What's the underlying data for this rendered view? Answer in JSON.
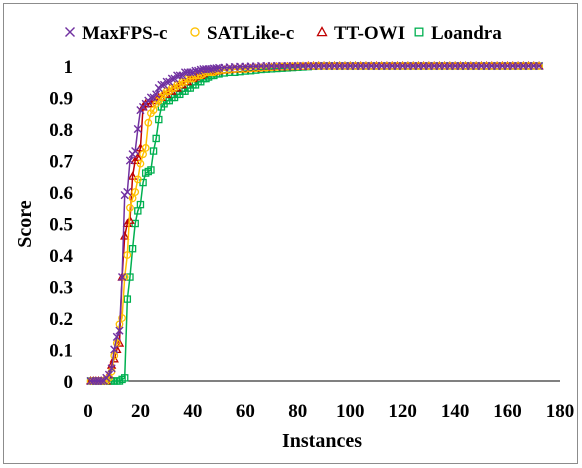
{
  "chart_data": {
    "type": "line",
    "xlabel": "Instances",
    "ylabel": "Score",
    "xlim": [
      0,
      180
    ],
    "ylim": [
      0,
      1
    ],
    "xticks": [
      "0",
      "20",
      "40",
      "60",
      "80",
      "100",
      "120",
      "140",
      "160",
      "180"
    ],
    "yticks": [
      "0",
      "0.1",
      "0.2",
      "0.3",
      "0.4",
      "0.5",
      "0.6",
      "0.7",
      "0.8",
      "0.9",
      "1"
    ],
    "legend_position": "top",
    "grid": false,
    "series": [
      {
        "name": "MaxFPS-c",
        "color": "#7030a0",
        "marker": "x",
        "x": [
          1,
          2,
          3,
          4,
          5,
          6,
          7,
          8,
          9,
          10,
          11,
          12,
          13,
          14,
          15,
          16,
          17,
          18,
          19,
          20,
          21,
          22,
          23,
          24,
          25,
          26,
          27,
          28,
          29,
          30,
          31,
          32,
          33,
          34,
          35,
          36,
          37,
          38,
          39,
          40,
          41,
          42,
          43,
          44,
          45,
          46,
          47,
          48,
          49,
          50,
          52,
          54,
          56,
          58,
          60,
          62,
          64,
          66,
          68,
          70,
          72,
          74,
          76,
          78,
          80,
          82,
          84,
          86,
          88,
          90,
          92,
          94,
          96,
          98,
          100,
          102,
          104,
          106,
          108,
          110,
          112,
          114,
          116,
          118,
          120,
          122,
          124,
          126,
          128,
          130,
          132,
          134,
          136,
          138,
          140,
          142,
          144,
          146,
          148,
          150,
          152,
          154,
          156,
          158,
          160,
          162,
          164,
          166,
          168,
          170,
          172
        ],
        "y": [
          0,
          0,
          0,
          0,
          0,
          0,
          0.01,
          0.02,
          0.04,
          0.1,
          0.14,
          0.16,
          0.33,
          0.59,
          0.6,
          0.7,
          0.72,
          0.73,
          0.8,
          0.86,
          0.87,
          0.88,
          0.89,
          0.9,
          0.9,
          0.91,
          0.93,
          0.94,
          0.94,
          0.95,
          0.95,
          0.96,
          0.96,
          0.97,
          0.97,
          0.97,
          0.98,
          0.98,
          0.98,
          0.98,
          0.985,
          0.985,
          0.988,
          0.99,
          0.99,
          0.99,
          0.99,
          0.992,
          0.993,
          0.994,
          0.995,
          0.996,
          0.997,
          0.998,
          0.998,
          0.999,
          0.999,
          1,
          1,
          1,
          1,
          1,
          1,
          1,
          1,
          1,
          1,
          1,
          1,
          1,
          1,
          1,
          1,
          1,
          1,
          1,
          1,
          1,
          1,
          1,
          1,
          1,
          1,
          1,
          1,
          1,
          1,
          1,
          1,
          1,
          1,
          1,
          1,
          1,
          1,
          1,
          1,
          1,
          1,
          1,
          1,
          1,
          1,
          1,
          1,
          1,
          1,
          1,
          1,
          1,
          1
        ]
      },
      {
        "name": "SATLike-c",
        "color": "#ffc000",
        "marker": "circle",
        "x": [
          1,
          2,
          3,
          4,
          5,
          6,
          7,
          8,
          9,
          10,
          11,
          12,
          13,
          14,
          15,
          16,
          17,
          18,
          19,
          20,
          21,
          22,
          23,
          24,
          25,
          26,
          27,
          28,
          29,
          30,
          31,
          32,
          33,
          34,
          35,
          36,
          37,
          38,
          39,
          40,
          41,
          42,
          43,
          44,
          45,
          46,
          47,
          48,
          49,
          50,
          52,
          54,
          56,
          58,
          60,
          62,
          64,
          66,
          68,
          70,
          72,
          74,
          76,
          78,
          80,
          82,
          84,
          86,
          88,
          90,
          92,
          94,
          96,
          98,
          100,
          102,
          104,
          106,
          108,
          110,
          112,
          114,
          116,
          118,
          120,
          122,
          124,
          126,
          128,
          130,
          132,
          134,
          136,
          138,
          140,
          142,
          144,
          146,
          148,
          150,
          152,
          154,
          156,
          158,
          160,
          162,
          164,
          166,
          168,
          170,
          172
        ],
        "y": [
          0,
          0,
          0,
          0,
          0,
          0,
          0,
          0.01,
          0.03,
          0.08,
          0.12,
          0.18,
          0.2,
          0.33,
          0.4,
          0.55,
          0.58,
          0.6,
          0.64,
          0.69,
          0.72,
          0.74,
          0.82,
          0.85,
          0.86,
          0.88,
          0.89,
          0.9,
          0.91,
          0.92,
          0.92,
          0.93,
          0.93,
          0.94,
          0.94,
          0.95,
          0.95,
          0.96,
          0.96,
          0.96,
          0.97,
          0.97,
          0.97,
          0.975,
          0.98,
          0.98,
          0.98,
          0.98,
          0.985,
          0.985,
          0.987,
          0.988,
          0.99,
          0.99,
          0.99,
          0.992,
          0.993,
          0.994,
          0.995,
          0.996,
          0.997,
          0.998,
          0.998,
          0.999,
          0.999,
          1,
          1,
          1,
          1,
          1,
          1,
          1,
          1,
          1,
          1,
          1,
          1,
          1,
          1,
          1,
          1,
          1,
          1,
          1,
          1,
          1,
          1,
          1,
          1,
          1,
          1,
          1,
          1,
          1,
          1,
          1,
          1,
          1,
          1,
          1,
          1,
          1,
          1,
          1,
          1,
          1,
          1,
          1,
          1,
          1,
          1
        ]
      },
      {
        "name": "TT-OWI",
        "color": "#c00000",
        "marker": "triangle",
        "x": [
          1,
          2,
          3,
          4,
          5,
          6,
          7,
          8,
          9,
          10,
          11,
          12,
          13,
          14,
          15,
          16,
          17,
          18,
          19,
          20,
          21,
          22,
          23,
          24,
          25,
          26,
          27,
          28,
          29,
          30,
          31,
          32,
          33,
          34,
          35,
          36,
          37,
          38,
          39,
          40,
          41,
          42,
          43,
          44,
          45,
          46,
          47,
          48,
          49,
          50,
          52,
          54,
          56,
          58,
          60,
          62,
          64,
          66,
          68,
          70,
          72,
          74,
          76,
          78,
          80,
          82,
          84,
          86,
          88,
          90,
          92,
          94,
          96,
          98,
          100,
          102,
          104,
          106,
          108,
          110,
          112,
          114,
          116,
          118,
          120,
          122,
          124,
          126,
          128,
          130,
          132,
          134,
          136,
          138,
          140,
          142,
          144,
          146,
          148,
          150,
          152,
          154,
          156,
          158,
          160,
          162,
          164,
          166,
          168,
          170,
          172
        ],
        "y": [
          0,
          0,
          0,
          0,
          0,
          0,
          0,
          0.02,
          0.05,
          0.07,
          0.1,
          0.12,
          0.33,
          0.46,
          0.5,
          0.51,
          0.65,
          0.7,
          0.71,
          0.74,
          0.87,
          0.88,
          0.88,
          0.88,
          0.89,
          0.89,
          0.9,
          0.9,
          0.91,
          0.91,
          0.92,
          0.92,
          0.93,
          0.93,
          0.94,
          0.94,
          0.95,
          0.95,
          0.96,
          0.96,
          0.965,
          0.97,
          0.97,
          0.975,
          0.98,
          0.98,
          0.98,
          0.982,
          0.984,
          0.985,
          0.987,
          0.988,
          0.99,
          0.99,
          0.991,
          0.992,
          0.993,
          0.994,
          0.995,
          0.996,
          0.997,
          0.997,
          0.998,
          0.998,
          0.999,
          0.999,
          1,
          1,
          1,
          1,
          1,
          1,
          1,
          1,
          1,
          1,
          1,
          1,
          1,
          1,
          1,
          1,
          1,
          1,
          1,
          1,
          1,
          1,
          1,
          1,
          1,
          1,
          1,
          1,
          1,
          1,
          1,
          1,
          1,
          1,
          1,
          1,
          1,
          1,
          1,
          1,
          1,
          1,
          1,
          1,
          1
        ]
      },
      {
        "name": "Loandra",
        "color": "#00b050",
        "marker": "square",
        "x": [
          1,
          2,
          3,
          4,
          5,
          6,
          7,
          8,
          9,
          10,
          11,
          12,
          13,
          14,
          15,
          16,
          17,
          18,
          19,
          20,
          21,
          22,
          23,
          24,
          25,
          26,
          27,
          28,
          29,
          30,
          31,
          32,
          33,
          34,
          35,
          36,
          37,
          38,
          39,
          40,
          41,
          42,
          43,
          44,
          45,
          46,
          47,
          48,
          49,
          50,
          52,
          54,
          56,
          58,
          60,
          62,
          64,
          66,
          68,
          70,
          72,
          74,
          76,
          78,
          80,
          82,
          84,
          86,
          88,
          90,
          92,
          94,
          96,
          98,
          100,
          102,
          104,
          106,
          108,
          110,
          112,
          114,
          116,
          118,
          120,
          122,
          124,
          126,
          128,
          130,
          132,
          134,
          136,
          138,
          140,
          142,
          144,
          146,
          148,
          150,
          152,
          154,
          156,
          158,
          160,
          162,
          164,
          166,
          168,
          170,
          172
        ],
        "y": [
          0,
          0,
          0,
          0,
          0,
          0,
          0,
          0,
          0,
          0,
          0,
          0,
          0.005,
          0.01,
          0.26,
          0.33,
          0.42,
          0.5,
          0.54,
          0.56,
          0.63,
          0.66,
          0.665,
          0.67,
          0.73,
          0.77,
          0.83,
          0.87,
          0.88,
          0.89,
          0.89,
          0.9,
          0.9,
          0.91,
          0.91,
          0.92,
          0.92,
          0.93,
          0.93,
          0.94,
          0.94,
          0.95,
          0.95,
          0.96,
          0.96,
          0.965,
          0.97,
          0.97,
          0.975,
          0.975,
          0.978,
          0.98,
          0.98,
          0.982,
          0.984,
          0.985,
          0.987,
          0.989,
          0.99,
          0.991,
          0.992,
          0.993,
          0.994,
          0.995,
          0.996,
          0.997,
          0.998,
          0.999,
          1,
          1,
          1,
          1,
          1,
          1,
          1,
          1,
          1,
          1,
          1,
          1,
          1,
          1,
          1,
          1,
          1,
          1,
          1,
          1,
          1,
          1,
          1,
          1,
          1,
          1,
          1,
          1,
          1,
          1,
          1,
          1,
          1,
          1,
          1,
          1,
          1,
          1,
          1,
          1,
          1,
          1,
          1
        ]
      }
    ]
  }
}
